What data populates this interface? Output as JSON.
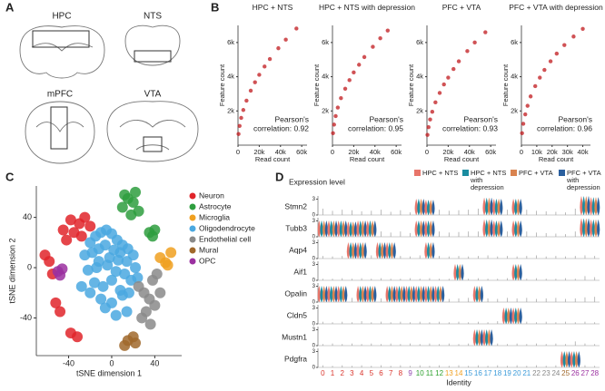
{
  "panel_labels": {
    "a": "A",
    "b": "B",
    "c": "C",
    "d": "D"
  },
  "brain_regions": [
    "HPC",
    "NTS",
    "mPFC",
    "VTA"
  ],
  "chart_data": [
    {
      "type": "scatter",
      "title": "HPC + NTS",
      "x_label": "Read count",
      "y_label": "Feature count",
      "color": "#c0181c",
      "x": [
        500,
        1500,
        3000,
        5000,
        8000,
        12000,
        16000,
        20000,
        25000,
        30000,
        38000,
        45000,
        55000
      ],
      "values": [
        650,
        1126,
        1592,
        2055,
        2600,
        3184,
        3677,
        4111,
        4596,
        5035,
        5667,
        6166,
        6817
      ],
      "xlim": [
        0,
        65000
      ],
      "xticks": [
        0,
        {
          "value": 20000,
          "label": "20k"
        },
        {
          "value": 40000,
          "label": "40k"
        },
        {
          "value": 60000,
          "label": "60k"
        }
      ],
      "ylim": [
        0,
        7000
      ],
      "yticks": [
        {
          "value": 2000,
          "label": "2k"
        },
        {
          "value": 4000,
          "label": "4k"
        },
        {
          "value": 6000,
          "label": "6k"
        }
      ],
      "annotation": [
        "Pearson's",
        "correlation: 0.92"
      ]
    },
    {
      "type": "scatter",
      "title": "HPC + NTS with depression",
      "x_label": "Read count",
      "y_label": "Feature count",
      "color": "#c0181c",
      "x": [
        500,
        1500,
        3000,
        5000,
        8000,
        12000,
        16000,
        20000,
        25000,
        30000,
        38000,
        45000,
        52000
      ],
      "values": [
        700,
        1200,
        1700,
        2200,
        2750,
        3300,
        3800,
        4250,
        4700,
        5150,
        5750,
        6250,
        6700
      ],
      "xlim": [
        0,
        65000
      ],
      "xticks": [
        0,
        {
          "value": 20000,
          "label": "20k"
        },
        {
          "value": 40000,
          "label": "40k"
        },
        {
          "value": 60000,
          "label": "60k"
        }
      ],
      "ylim": [
        0,
        7000
      ],
      "yticks": [
        {
          "value": 2000,
          "label": "2k"
        },
        {
          "value": 4000,
          "label": "4k"
        },
        {
          "value": 6000,
          "label": "6k"
        }
      ],
      "annotation": [
        "Pearson's",
        "correlation: 0.95"
      ]
    },
    {
      "type": "scatter",
      "title": "PFC + VTA",
      "x_label": "Read count",
      "y_label": "Feature count",
      "color": "#c0181c",
      "x": [
        500,
        1500,
        3000,
        5000,
        8000,
        12000,
        16000,
        20000,
        25000,
        30000,
        38000,
        45000,
        55000
      ],
      "values": [
        600,
        1050,
        1500,
        1950,
        2500,
        3050,
        3550,
        3950,
        4450,
        4900,
        5500,
        6000,
        6600
      ],
      "xlim": [
        0,
        65000
      ],
      "xticks": [
        0,
        {
          "value": 20000,
          "label": "20k"
        },
        {
          "value": 40000,
          "label": "40k"
        },
        {
          "value": 60000,
          "label": "60k"
        }
      ],
      "ylim": [
        0,
        7000
      ],
      "yticks": [
        {
          "value": 2000,
          "label": "2k"
        },
        {
          "value": 4000,
          "label": "4k"
        },
        {
          "value": 6000,
          "label": "6k"
        }
      ],
      "annotation": [
        "Pearson's",
        "correlation: 0.93"
      ]
    },
    {
      "type": "scatter",
      "title": "PFC + VTA with depression",
      "x_label": "Read count",
      "y_label": "Feature count",
      "color": "#c0181c",
      "x": [
        400,
        1200,
        2500,
        4000,
        6000,
        9000,
        12000,
        15000,
        19000,
        23000,
        28000,
        34000,
        40000
      ],
      "values": [
        700,
        1250,
        1800,
        2300,
        2850,
        3450,
        3950,
        4400,
        4900,
        5350,
        5850,
        6350,
        6800
      ],
      "xlim": [
        0,
        45000
      ],
      "xticks": [
        0,
        {
          "value": 10000,
          "label": "10k"
        },
        {
          "value": 20000,
          "label": "20k"
        },
        {
          "value": 30000,
          "label": "30k"
        },
        {
          "value": 40000,
          "label": "40k"
        }
      ],
      "ylim": [
        0,
        7000
      ],
      "yticks": [
        {
          "value": 2000,
          "label": "2k"
        },
        {
          "value": 4000,
          "label": "4k"
        },
        {
          "value": 6000,
          "label": "6k"
        }
      ],
      "annotation": [
        "Pearson's",
        "correlation: 0.96"
      ]
    },
    {
      "type": "tsne",
      "x_label": "tSNE dimension 1",
      "y_label": "tSNE dimension 2",
      "xlim": [
        -70,
        65
      ],
      "xticks": [
        -40,
        0,
        40
      ],
      "ylim": [
        -70,
        65
      ],
      "yticks": [
        -40,
        0,
        40
      ],
      "series": [
        {
          "name": "Neuron",
          "color": "#e0242a",
          "x": [
            -45,
            -38,
            -30,
            -25,
            -20,
            -35,
            -42,
            -28,
            -55,
            -58,
            -52,
            -48,
            -38,
            -32,
            -62
          ],
          "values": [
            30,
            38,
            35,
            40,
            33,
            28,
            22,
            25,
            -5,
            5,
            -28,
            -35,
            -52,
            -55,
            10
          ]
        },
        {
          "name": "Astrocyte",
          "color": "#2e9e3e",
          "x": [
            10,
            15,
            20,
            25,
            18,
            12,
            22,
            35,
            40,
            38
          ],
          "values": [
            48,
            55,
            52,
            45,
            42,
            58,
            60,
            28,
            30,
            25
          ]
        },
        {
          "name": "Microglia",
          "color": "#f0a020",
          "x": [
            45,
            50,
            55,
            52
          ],
          "values": [
            8,
            4,
            12,
            2
          ]
        },
        {
          "name": "Oligodendrocyte",
          "color": "#4aa8e0",
          "x": [
            -20,
            -15,
            -10,
            -5,
            0,
            5,
            10,
            15,
            20,
            -25,
            -18,
            -12,
            -6,
            2,
            8,
            14,
            22,
            -22,
            -14,
            -4,
            4,
            12,
            18,
            -16,
            -8,
            0,
            8,
            16,
            -10,
            0,
            10,
            -20,
            -12,
            -2,
            6,
            14,
            24,
            -6,
            4,
            -28
          ],
          "values": [
            20,
            25,
            28,
            30,
            27,
            22,
            18,
            15,
            10,
            10,
            12,
            15,
            18,
            14,
            12,
            5,
            0,
            -2,
            0,
            2,
            -3,
            -5,
            -10,
            -12,
            -15,
            -10,
            -18,
            -20,
            -25,
            -28,
            -22,
            -20,
            5,
            8,
            6,
            -35,
            -8,
            -32,
            -38,
            -15
          ]
        },
        {
          "name": "Endothelial cell",
          "color": "#8a8a8a",
          "x": [
            25,
            30,
            35,
            40,
            45,
            32,
            28,
            38,
            42,
            36
          ],
          "values": [
            -15,
            -20,
            -25,
            -30,
            -20,
            -35,
            -40,
            -10,
            -5,
            -45
          ]
        },
        {
          "name": "Mural",
          "color": "#a0682b",
          "x": [
            15,
            20,
            22,
            12
          ],
          "values": [
            -58,
            -55,
            -60,
            -62
          ]
        },
        {
          "name": "OPC",
          "color": "#9b30a0",
          "x": [
            -50,
            -48,
            -46
          ],
          "values": [
            -3,
            -6,
            -1
          ]
        }
      ]
    },
    {
      "type": "violin",
      "title": "Expression level",
      "x_label": "Identity",
      "categories": [
        "0",
        "1",
        "2",
        "3",
        "4",
        "5",
        "6",
        "7",
        "8",
        "9",
        "10",
        "11",
        "12",
        "13",
        "14",
        "15",
        "16",
        "17",
        "18",
        "19",
        "20",
        "21",
        "22",
        "23",
        "24",
        "25",
        "26",
        "27",
        "28"
      ],
      "category_colors": [
        "#d9342b",
        "#d9342b",
        "#d9342b",
        "#d9342b",
        "#d9342b",
        "#d9342b",
        "#d9342b",
        "#d9342b",
        "#d9342b",
        "#8e44ad",
        "#2ca02c",
        "#2ca02c",
        "#2ca02c",
        "#f0a020",
        "#f0a020",
        "#3a9ad9",
        "#3a9ad9",
        "#3a9ad9",
        "#3a9ad9",
        "#3a9ad9",
        "#3a9ad9",
        "#3a9ad9",
        "#888888",
        "#888888",
        "#888888",
        "#a0682b",
        "#9b30a0",
        "#9b30a0",
        "#9b30a0"
      ],
      "series": [
        {
          "name": "HPC + NTS",
          "color": "#e8756a"
        },
        {
          "name": "HPC + NTS with depression",
          "color": "#1a8ca0"
        },
        {
          "name": "PFC + VTA",
          "color": "#d9834f"
        },
        {
          "name": "PFC + VTA with depression",
          "color": "#2a5f9e"
        }
      ],
      "ylim": [
        0,
        3.6
      ],
      "yticks": [
        0,
        3
      ],
      "genes": [
        {
          "name": "Stmn2",
          "values": [
            1.2,
            0.8,
            1.0,
            0.9,
            0.7,
            0.8,
            1.0,
            0.6,
            0.9,
            0.5,
            3.0,
            2.8,
            1.0,
            0.8,
            0.9,
            1.0,
            1.2,
            3.2,
            3.0,
            1.0,
            3.0,
            1.0,
            0.8,
            0.7,
            0.6,
            0.5,
            1.2,
            3.5,
            3.3
          ]
        },
        {
          "name": "Tubb3",
          "values": [
            3.0,
            3.0,
            3.0,
            2.8,
            3.0,
            3.0,
            1.0,
            0.8,
            1.0,
            0.7,
            3.0,
            3.0,
            1.0,
            0.8,
            0.9,
            1.0,
            1.0,
            3.2,
            3.0,
            1.0,
            3.0,
            1.0,
            0.8,
            0.7,
            0.6,
            0.5,
            1.0,
            3.4,
            3.2
          ]
        },
        {
          "name": "Aqp4",
          "values": [
            0.5,
            0.4,
            0.5,
            3.0,
            3.0,
            0.6,
            3.0,
            3.0,
            0.5,
            0.4,
            0.6,
            3.0,
            0.5,
            0.4,
            0.5,
            0.4,
            0.5,
            0.6,
            0.4,
            0.5,
            0.4,
            0.5,
            0.6,
            0.4,
            0.5,
            0.4,
            0.5,
            0.6,
            0.5
          ]
        },
        {
          "name": "Aif1",
          "values": [
            0.3,
            0.3,
            0.4,
            0.3,
            0.4,
            0.3,
            0.4,
            0.3,
            0.3,
            0.4,
            0.3,
            0.4,
            0.3,
            0.3,
            3.0,
            0.3,
            0.4,
            0.3,
            0.3,
            0.4,
            3.0,
            0.3,
            0.4,
            0.3,
            0.3,
            0.4,
            0.3,
            0.8,
            0.6
          ]
        },
        {
          "name": "Opalin",
          "values": [
            3.0,
            3.0,
            3.0,
            0.8,
            3.0,
            3.0,
            0.7,
            3.0,
            3.0,
            3.0,
            3.0,
            3.0,
            3.0,
            0.6,
            0.7,
            0.8,
            3.0,
            0.7,
            0.6,
            0.8,
            0.7,
            0.8,
            0.6,
            0.7,
            0.8,
            0.6,
            0.7,
            0.9,
            1.0
          ]
        },
        {
          "name": "Cldn5",
          "values": [
            0.4,
            0.3,
            0.4,
            0.3,
            0.5,
            0.3,
            0.4,
            0.3,
            0.4,
            0.3,
            0.4,
            0.3,
            0.4,
            0.3,
            0.4,
            0.3,
            0.4,
            0.3,
            0.5,
            3.0,
            3.0,
            0.4,
            0.3,
            0.4,
            0.3,
            0.4,
            0.3,
            0.4,
            0.3
          ]
        },
        {
          "name": "Mustn1",
          "values": [
            0.3,
            0.4,
            0.3,
            0.4,
            0.3,
            0.4,
            0.3,
            0.4,
            0.3,
            0.4,
            0.3,
            0.4,
            0.3,
            0.4,
            0.3,
            0.4,
            3.0,
            3.0,
            0.4,
            0.3,
            0.4,
            0.3,
            0.4,
            0.3,
            0.4,
            0.3,
            0.8,
            0.4,
            0.3
          ]
        },
        {
          "name": "Pdgfra",
          "values": [
            0.4,
            0.3,
            0.4,
            0.3,
            0.4,
            0.3,
            0.4,
            0.3,
            0.4,
            0.3,
            0.4,
            0.3,
            0.4,
            0.3,
            0.4,
            0.3,
            0.4,
            0.3,
            0.4,
            0.3,
            0.4,
            0.3,
            0.4,
            0.3,
            0.4,
            3.0,
            3.0,
            0.4,
            0.3
          ]
        }
      ]
    }
  ]
}
